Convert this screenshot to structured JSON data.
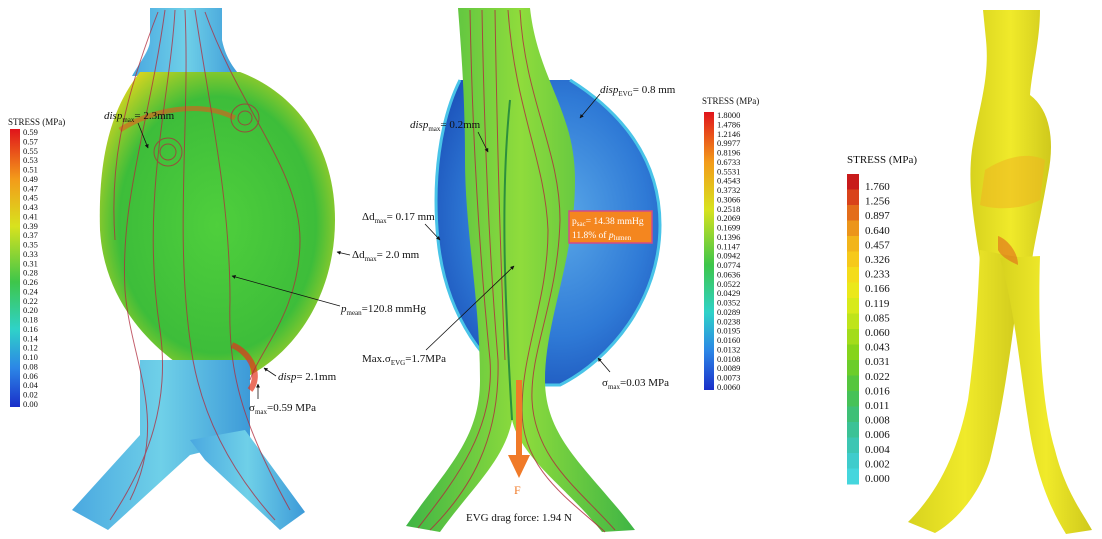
{
  "panel_a": {
    "colorbar": {
      "title": "STRESS (MPa)",
      "ticks": [
        "0.59",
        "0.57",
        "0.55",
        "0.53",
        "0.51",
        "0.49",
        "0.47",
        "0.45",
        "0.43",
        "0.41",
        "0.39",
        "0.37",
        "0.35",
        "0.33",
        "0.31",
        "0.28",
        "0.26",
        "0.24",
        "0.22",
        "0.20",
        "0.18",
        "0.16",
        "0.14",
        "0.12",
        "0.10",
        "0.08",
        "0.06",
        "0.04",
        "0.02",
        "0.00"
      ]
    },
    "labels": {
      "disp_top_prefix": "disp",
      "disp_top_sub": "max",
      "disp_top_value": "= 2.3mm",
      "dd_prefix": "Δd",
      "dd_sub": "max",
      "dd_value": "= 2.0 mm",
      "p_prefix": "p",
      "p_sub": "mean",
      "p_value": "=120.8 mmHg",
      "disp_bot_prefix": "disp",
      "disp_bot_value": "= 2.1mm",
      "sigma_prefix": "σ",
      "sigma_sub": "max",
      "sigma_value": "=0.59 MPa"
    }
  },
  "panel_b": {
    "colorbar": {
      "title": "STRESS (MPa)",
      "ticks": [
        "1.8000",
        "1.4786",
        "1.2146",
        "0.9977",
        "0.8196",
        "0.6733",
        "0.5531",
        "0.4543",
        "0.3732",
        "0.3066",
        "0.2518",
        "0.2069",
        "0.1699",
        "0.1396",
        "0.1147",
        "0.0942",
        "0.0774",
        "0.0636",
        "0.0522",
        "0.0429",
        "0.0352",
        "0.0289",
        "0.0238",
        "0.0195",
        "0.0160",
        "0.0132",
        "0.0108",
        "0.0089",
        "0.0073",
        "0.0060"
      ]
    },
    "labels": {
      "disp_left_prefix": "disp",
      "disp_left_sub": "max",
      "disp_left_value": "= 0.2mm",
      "disp_right_prefix": "disp",
      "disp_right_sub": "EVG",
      "disp_right_value": "= 0.8 mm",
      "dd_prefix": "Δd",
      "dd_sub": "max",
      "dd_value": "= 0.17 mm",
      "psac_prefix": "p",
      "psac_sub": "sac",
      "psac_value": "= 14.38 mmHg",
      "psac_line2": "11.8% of ",
      "psac_line2_p": "p",
      "psac_line2_sub": "lumen",
      "max_sigma_prefix": "Max.σ",
      "max_sigma_sub": "EVG",
      "max_sigma_value": "=1.7MPa",
      "sigma_prefix": "σ",
      "sigma_sub": "max",
      "sigma_value": "=0.03 MPa",
      "force_label": "F",
      "drag_force": "EVG drag force: 1.94 N"
    }
  },
  "panel_c": {
    "colorbar": {
      "title": "STRESS (MPa)",
      "ticks": [
        "1.760",
        "1.256",
        "0.897",
        "0.640",
        "0.457",
        "0.326",
        "0.233",
        "0.166",
        "0.119",
        "0.085",
        "0.060",
        "0.043",
        "0.031",
        "0.022",
        "0.016",
        "0.011",
        "0.008",
        "0.006",
        "0.004",
        "0.002",
        "0.000"
      ],
      "colors": [
        "#c81b1b",
        "#d9431b",
        "#e36d1b",
        "#ec951b",
        "#f2b51b",
        "#f6c91b",
        "#f4dc1b",
        "#ebe81b",
        "#d8ea1b",
        "#bfe41b",
        "#a3dc1b",
        "#86d41b",
        "#6ccd2a",
        "#55c63e",
        "#46c258",
        "#3ec077",
        "#3bc296",
        "#3cc6b3",
        "#3fcccc",
        "#45d6dd"
      ]
    }
  }
}
